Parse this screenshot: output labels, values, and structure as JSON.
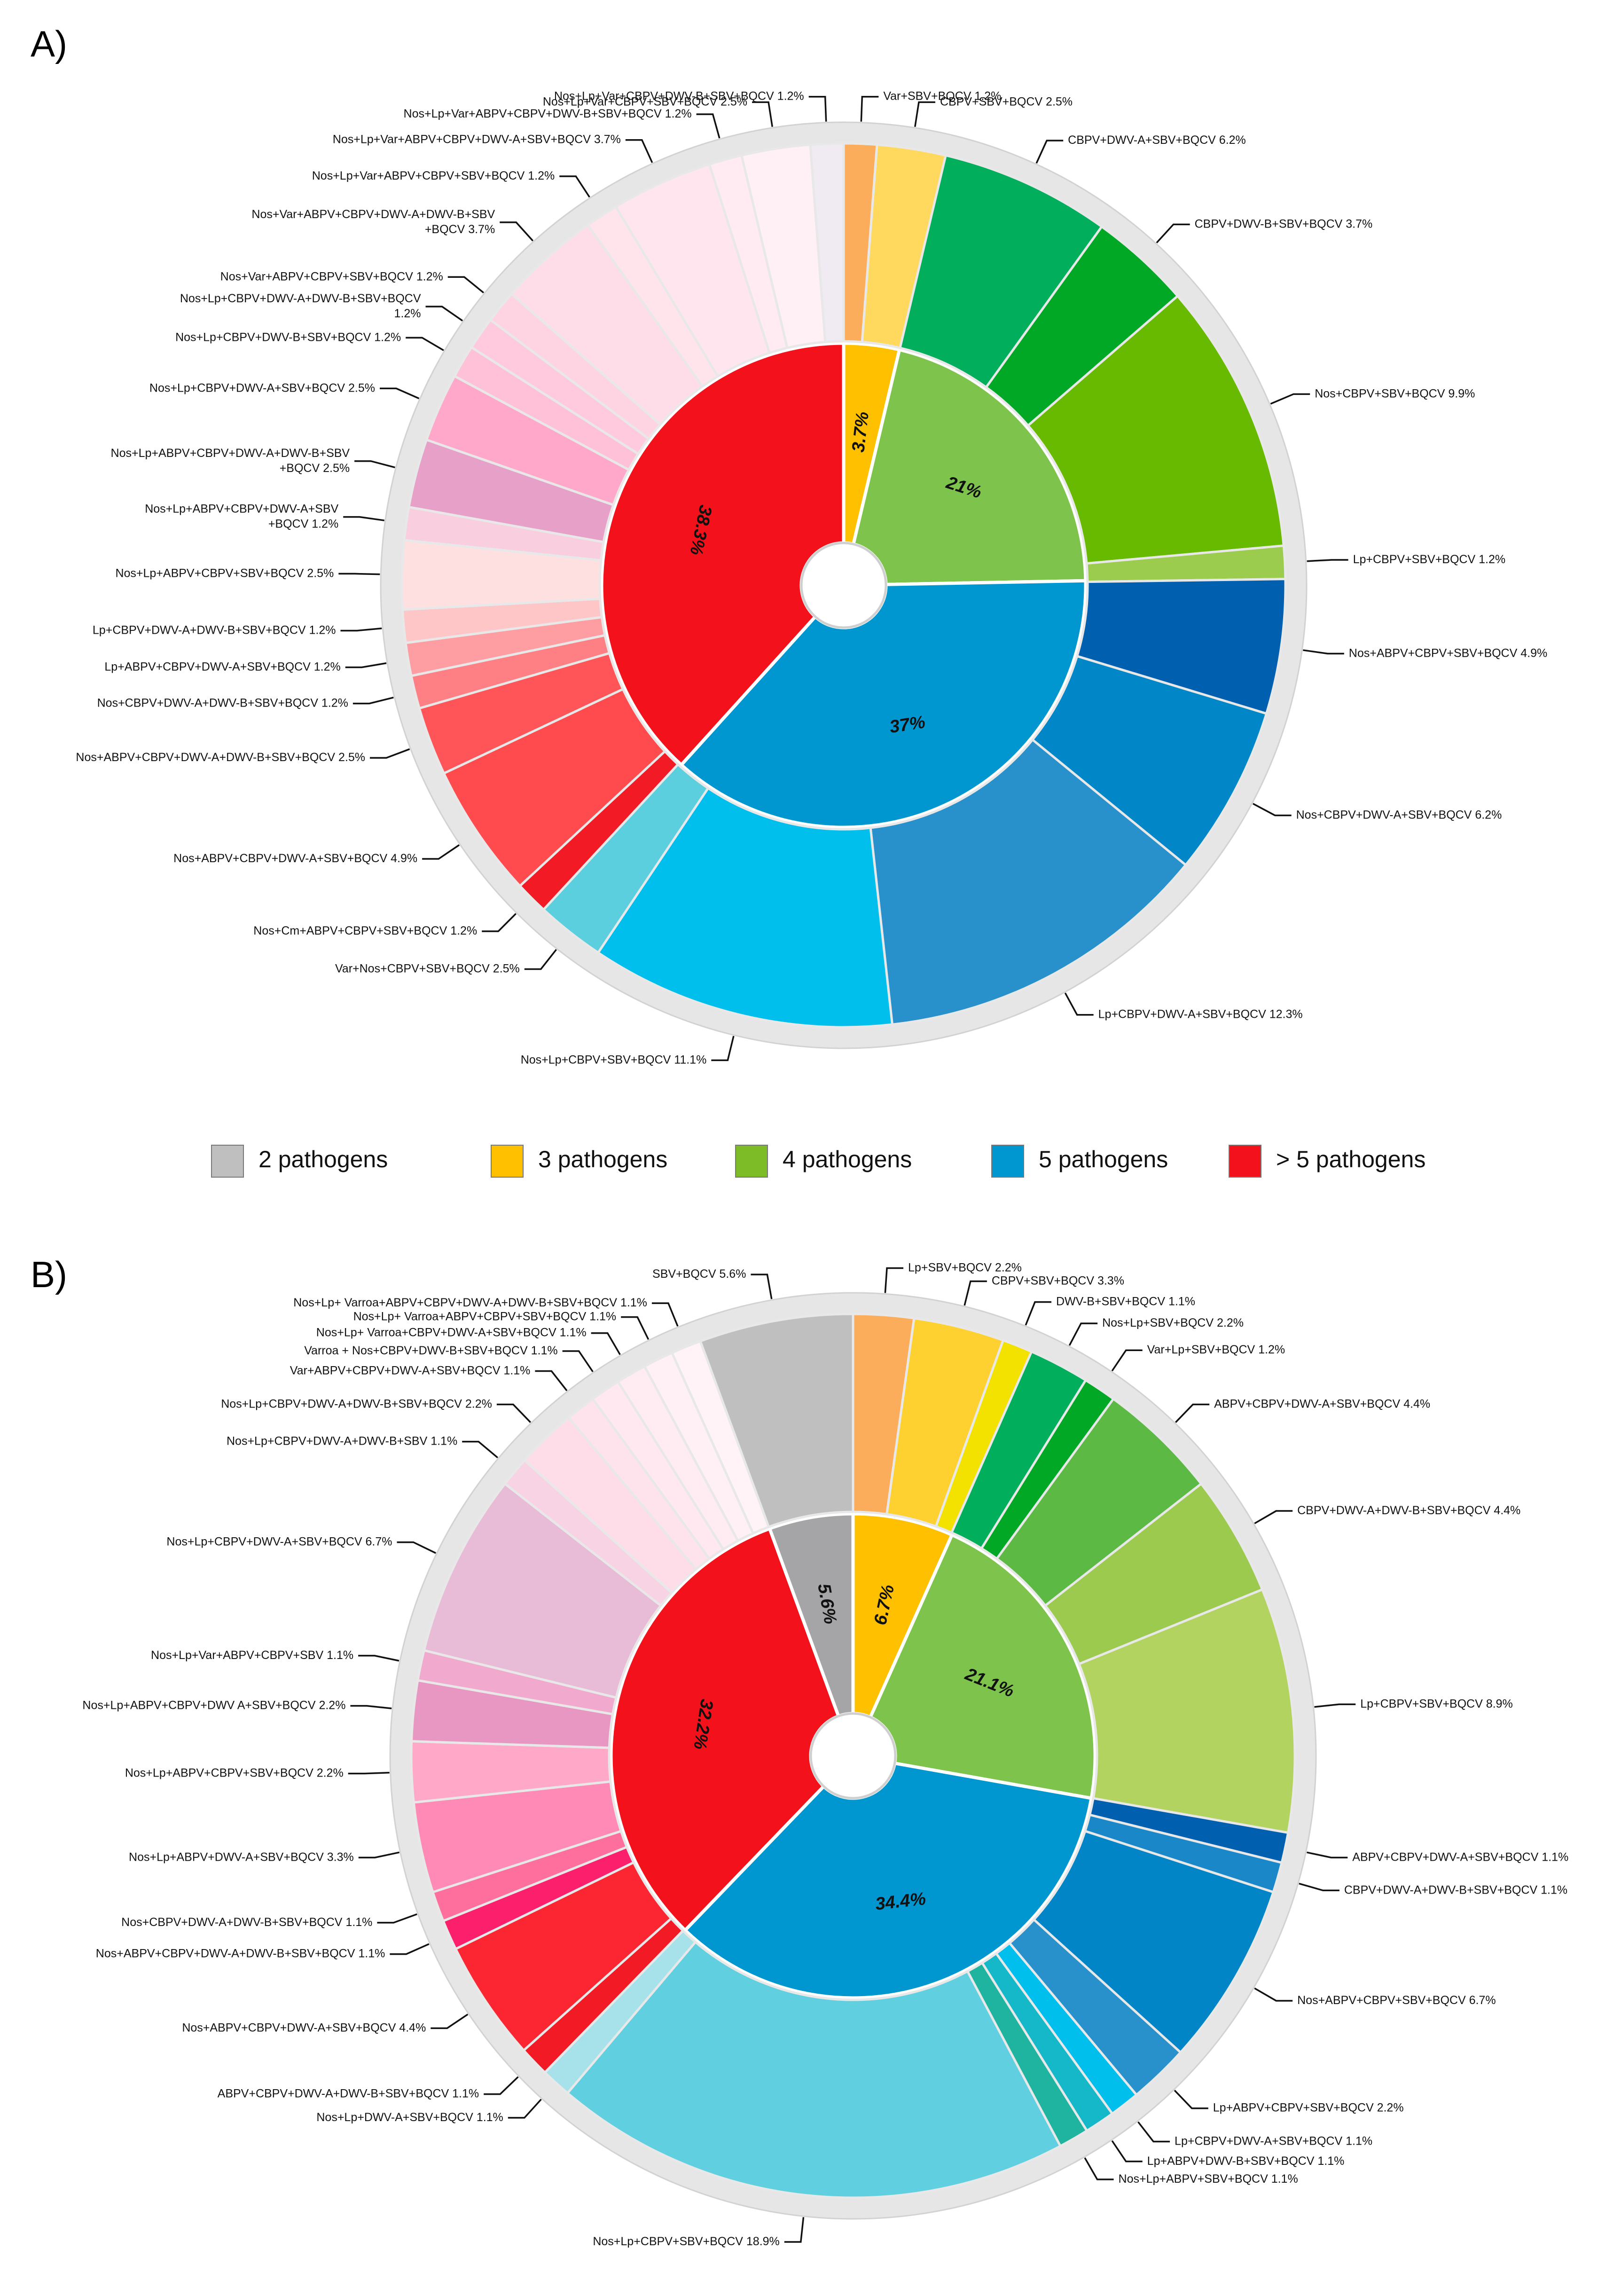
{
  "legend": [
    {
      "label": "2 pathogens",
      "color": "#c0bfc0"
    },
    {
      "label": "3 pathogens",
      "color": "#ffc000"
    },
    {
      "label": "4 pathogens",
      "color": "#7dbb27"
    },
    {
      "label": "5 pathogens",
      "color": "#0097d0"
    },
    {
      "label": "> 5 pathogens",
      "color": "#f3121b"
    }
  ],
  "chart_data": [
    {
      "panel": "A)",
      "type": "pie",
      "subtype": "sunburst",
      "inner": [
        {
          "group": "3 pathogens",
          "value": 3.7,
          "label": "3.7%",
          "color": "#ffc000"
        },
        {
          "group": "4 pathogens",
          "value": 21.0,
          "label": "21%",
          "color": "#7ec44c"
        },
        {
          "group": "5 pathogens",
          "value": 37.0,
          "label": "37%",
          "color": "#0097d0"
        },
        {
          "group": "> 5 pathogens",
          "value": 38.3,
          "label": "38.3%",
          "color": "#f3121b"
        }
      ],
      "outer": [
        {
          "group": "3 pathogens",
          "value": 1.2,
          "color": "#fbad5c",
          "label": "Var+SBV+BQCV 1.2%"
        },
        {
          "group": "3 pathogens",
          "value": 2.5,
          "color": "#ffd95e",
          "label": "CBPV+SBV+BQCV 2.5%"
        },
        {
          "group": "4 pathogens",
          "value": 6.2,
          "color": "#00ae5b",
          "label": "CBPV+DWV-A+SBV+BQCV 6.2%"
        },
        {
          "group": "4 pathogens",
          "value": 3.7,
          "color": "#00a826",
          "label": "CBPV+DWV-B+SBV+BQCV 3.7%"
        },
        {
          "group": "4 pathogens",
          "value": 9.9,
          "color": "#68ba00",
          "label": "Nos+CBPV+SBV+BQCV 9.9%"
        },
        {
          "group": "4 pathogens",
          "value": 1.2,
          "color": "#9ccc4e",
          "label": "Lp+CBPV+SBV+BQCV 1.2%"
        },
        {
          "group": "5 pathogens",
          "value": 4.9,
          "color": "#005fae",
          "label": "Nos+ABPV+CBPV+SBV+BQCV 4.9%"
        },
        {
          "group": "5 pathogens",
          "value": 6.2,
          "color": "#0186c8",
          "label": "Nos+CBPV+DWV-A+SBV+BQCV 6.2%"
        },
        {
          "group": "5 pathogens",
          "value": 12.3,
          "color": "#2891cc",
          "label": "Lp+CBPV+DWV-A+SBV+BQCV 12.3%"
        },
        {
          "group": "5 pathogens",
          "value": 11.1,
          "color": "#01bfec",
          "label": "Nos+Lp+CBPV+SBV+BQCV 11.1%"
        },
        {
          "group": "5 pathogens",
          "value": 2.5,
          "color": "#5bcfdd",
          "label": "Var+Nos+CBPV+SBV+BQCV 2.5%"
        },
        {
          "group": "> 5 pathogens",
          "value": 1.2,
          "color": "#f21a25",
          "label": "Nos+Cm+ABPV+CBPV+SBV+BQCV 1.2%"
        },
        {
          "group": "> 5 pathogens",
          "value": 4.9,
          "color": "#ff4b4d",
          "label": "Nos+ABPV+CBPV+DWV-A+SBV+BQCV 4.9%"
        },
        {
          "group": "> 5 pathogens",
          "value": 2.5,
          "color": "#ff5558",
          "label": "Nos+ABPV+CBPV+DWV-A+DWV-B+SBV+BQCV  2.5%"
        },
        {
          "group": "> 5 pathogens",
          "value": 1.2,
          "color": "#ff8084",
          "label": "Nos+CBPV+DWV-A+DWV-B+SBV+BQCV 1.2%"
        },
        {
          "group": "> 5 pathogens",
          "value": 1.2,
          "color": "#ff9ea2",
          "label": "Lp+ABPV+CBPV+DWV-A+SBV+BQCV 1.2%"
        },
        {
          "group": "> 5 pathogens",
          "value": 1.2,
          "color": "#ffc6c8",
          "label": "Lp+CBPV+DWV-A+DWV-B+SBV+BQCV 1.2%"
        },
        {
          "group": "> 5 pathogens",
          "value": 2.5,
          "color": "#ffe0e1",
          "label": "Nos+Lp+ABPV+CBPV+SBV+BQCV 2.5%"
        },
        {
          "group": "> 5 pathogens",
          "value": 1.2,
          "color": "#f9cfe0",
          "label": "Nos+Lp+ABPV+CBPV+DWV-A+SBV\n+BQCV 1.2%"
        },
        {
          "group": "> 5 pathogens",
          "value": 2.5,
          "color": "#e7a0c8",
          "label": "Nos+Lp+ABPV+CBPV+DWV-A+DWV-B+SBV\n+BQCV 2.5%"
        },
        {
          "group": "> 5 pathogens",
          "value": 2.5,
          "color": "#ffa8ca",
          "label": "Nos+Lp+CBPV+DWV-A+SBV+BQCV 2.5%"
        },
        {
          "group": "> 5 pathogens",
          "value": 1.2,
          "color": "#ffc1d8",
          "label": "Nos+Lp+CBPV+DWV-B+SBV+BQCV 1.2%"
        },
        {
          "group": "> 5 pathogens",
          "value": 1.2,
          "color": "#ffcade",
          "label": "Nos+Lp+CBPV+DWV-A+DWV-B+SBV+BQCV\n1.2%"
        },
        {
          "group": "> 5 pathogens",
          "value": 1.2,
          "color": "#ffd4e2",
          "label": "Nos+Var+ABPV+CBPV+SBV+BQCV 1.2%"
        },
        {
          "group": "> 5 pathogens",
          "value": 3.7,
          "color": "#ffdde8",
          "label": "Nos+Var+ABPV+CBPV+DWV-A+DWV-B+SBV\n+BQCV 3.7%"
        },
        {
          "group": "> 5 pathogens",
          "value": 1.2,
          "color": "#ffe4ec",
          "label": "Nos+Lp+Var+ABPV+CBPV+SBV+BQCV 1.2%"
        },
        {
          "group": "> 5 pathogens",
          "value": 3.7,
          "color": "#ffe6ee",
          "label": "Nos+Lp+Var+ABPV+CBPV+DWV-A+SBV+BQCV  3.7%"
        },
        {
          "group": "> 5 pathogens",
          "value": 1.2,
          "color": "#ffebf1",
          "label": "Nos+Lp+Var+ABPV+CBPV+DWV-B+SBV+BQCV  1.2%"
        },
        {
          "group": "> 5 pathogens",
          "value": 2.5,
          "color": "#fff0f5",
          "label": "Nos+Lp+Var+CBPV+SBV+BQCV 2.5%"
        },
        {
          "group": "> 5 pathogens",
          "value": 1.2,
          "color": "#f0eaf2",
          "label": "Nos+Lp+Var+CBPV+DWV-B+SBV+BQCV 1.2%"
        }
      ]
    },
    {
      "panel": "B)",
      "type": "pie",
      "subtype": "sunburst",
      "inner": [
        {
          "group": "3 pathogens",
          "value": 6.7,
          "label": "6.7%",
          "color": "#ffc000"
        },
        {
          "group": "4 pathogens",
          "value": 21.1,
          "label": "21.1%",
          "color": "#7ec44c"
        },
        {
          "group": "5 pathogens",
          "value": 34.4,
          "label": "34.4%",
          "color": "#0097d0"
        },
        {
          "group": "> 5 pathogens",
          "value": 32.2,
          "label": "32.2%",
          "color": "#f3121b"
        },
        {
          "group": "2 pathogens",
          "value": 5.6,
          "label": "5.6%",
          "color": "#a5a4a6"
        }
      ],
      "outer": [
        {
          "group": "3 pathogens",
          "value": 2.2,
          "color": "#fbad5c",
          "label": "Lp+SBV+BQCV 2.2%"
        },
        {
          "group": "3 pathogens",
          "value": 3.3,
          "color": "#ffd130",
          "label": "CBPV+SBV+BQCV 3.3%"
        },
        {
          "group": "3 pathogens",
          "value": 1.1,
          "color": "#f3e200",
          "label": "DWV-B+SBV+BQCV 1.1%"
        },
        {
          "group": "4 pathogens",
          "value": 2.2,
          "color": "#00ae5b",
          "label": "Nos+Lp+SBV+BQCV 2.2%"
        },
        {
          "group": "4 pathogens",
          "value": 1.2,
          "color": "#00a826",
          "label": "Var+Lp+SBV+BQCV 1.2%"
        },
        {
          "group": "4 pathogens",
          "value": 4.4,
          "color": "#5cb944",
          "label": "ABPV+CBPV+DWV-A+SBV+BQCV 4.4%"
        },
        {
          "group": "4 pathogens",
          "value": 4.4,
          "color": "#9bca4f",
          "label": "CBPV+DWV-A+DWV-B+SBV+BQCV 4.4%"
        },
        {
          "group": "4 pathogens",
          "value": 8.9,
          "color": "#b2d35f",
          "label": "Lp+CBPV+SBV+BQCV 8.9%"
        },
        {
          "group": "5 pathogens",
          "value": 1.1,
          "color": "#005fae",
          "label": "ABPV+CBPV+DWV-A+SBV+BQCV 1.1%"
        },
        {
          "group": "5 pathogens",
          "value": 1.1,
          "color": "#1a88c8",
          "label": "CBPV+DWV-A+DWV-B+SBV+BQCV 1.1%"
        },
        {
          "group": "5 pathogens",
          "value": 6.7,
          "color": "#0185c6",
          "label": "Nos+ABPV+CBPV+SBV+BQCV 6.7%"
        },
        {
          "group": "5 pathogens",
          "value": 2.2,
          "color": "#2891cc",
          "label": "Lp+ABPV+CBPV+SBV+BQCV 2.2%"
        },
        {
          "group": "5 pathogens",
          "value": 1.1,
          "color": "#01bfec",
          "label": "Lp+CBPV+DWV-A+SBV+BQCV 1.1%"
        },
        {
          "group": "5 pathogens",
          "value": 1.1,
          "color": "#14b8c8",
          "label": "Lp+ABPV+DWV-B+SBV+BQCV 1.1%"
        },
        {
          "group": "5 pathogens",
          "value": 1.1,
          "color": "#1fb49f",
          "label": "Nos+Lp+ABPV+SBV+BQCV 1.1%"
        },
        {
          "group": "5 pathogens",
          "value": 18.9,
          "color": "#60cfe0",
          "label": "Nos+Lp+CBPV+SBV+BQCV 18.9%"
        },
        {
          "group": "5 pathogens",
          "value": 1.1,
          "color": "#a7e2ea",
          "label": "Nos+Lp+DWV-A+SBV+BQCV 1.1%"
        },
        {
          "group": "> 5 pathogens",
          "value": 1.1,
          "color": "#f21a25",
          "label": "ABPV+CBPV+DWV-A+DWV-B+SBV+BQCV 1.1%"
        },
        {
          "group": "> 5 pathogens",
          "value": 4.4,
          "color": "#fb2632",
          "label": "Nos+ABPV+CBPV+DWV-A+SBV+BQCV 4.4%"
        },
        {
          "group": "> 5 pathogens",
          "value": 1.1,
          "color": "#fb1f6c",
          "label": "Nos+ABPV+CBPV+DWV-A+DWV-B+SBV+BQCV      1.1%"
        },
        {
          "group": "> 5 pathogens",
          "value": 1.1,
          "color": "#ff6f9d",
          "label": "Nos+CBPV+DWV-A+DWV-B+SBV+BQCV 1.1%"
        },
        {
          "group": "> 5 pathogens",
          "value": 3.3,
          "color": "#ff8ab5",
          "label": "Nos+Lp+ABPV+DWV-A+SBV+BQCV 3.3%"
        },
        {
          "group": "> 5 pathogens",
          "value": 2.2,
          "color": "#ffa8c8",
          "label": "Nos+Lp+ABPV+CBPV+SBV+BQCV 2.2%"
        },
        {
          "group": "> 5 pathogens",
          "value": 2.2,
          "color": "#e897c2",
          "label": "Nos+Lp+ABPV+CBPV+DWV A+SBV+BQCV  2.2%"
        },
        {
          "group": "> 5 pathogens",
          "value": 1.1,
          "color": "#f1aacd",
          "label": "Nos+Lp+Var+ABPV+CBPV+SBV 1.1%"
        },
        {
          "group": "> 5 pathogens",
          "value": 6.7,
          "color": "#e8bcd6",
          "label": "Nos+Lp+CBPV+DWV-A+SBV+BQCV 6.7%"
        },
        {
          "group": "> 5 pathogens",
          "value": 1.1,
          "color": "#f8d3e3",
          "label": "Nos+Lp+CBPV+DWV-A+DWV-B+SBV 1.1%"
        },
        {
          "group": "> 5 pathogens",
          "value": 2.2,
          "color": "#ffdde8",
          "label": "Nos+Lp+CBPV+DWV-A+DWV-B+SBV+BQCV   2.2%"
        },
        {
          "group": "> 5 pathogens",
          "value": 1.1,
          "color": "#ffe3ec",
          "label": "Var+ABPV+CBPV+DWV-A+SBV+BQCV  1.1%"
        },
        {
          "group": "> 5 pathogens",
          "value": 1.1,
          "color": "#ffe8ef",
          "label": "Varroa + Nos+CBPV+DWV-B+SBV+BQCV 1.1%"
        },
        {
          "group": "> 5 pathogens",
          "value": 1.1,
          "color": "#ffecf2",
          "label": "Nos+Lp+ Varroa+CBPV+DWV-A+SBV+BQCV   1.1%"
        },
        {
          "group": "> 5 pathogens",
          "value": 1.1,
          "color": "#fff0f5",
          "label": "Nos+Lp+ Varroa+ABPV+CBPV+SBV+BQCV  1.1%"
        },
        {
          "group": "> 5 pathogens",
          "value": 1.1,
          "color": "#fff3f7",
          "label": "Nos+Lp+ Varroa+ABPV+CBPV+DWV-A+DWV-B+SBV+BQCV  1.1%"
        },
        {
          "group": "2 pathogens",
          "value": 5.6,
          "color": "#c0bfc0",
          "label": "SBV+BQCV 5.6%"
        }
      ]
    }
  ]
}
